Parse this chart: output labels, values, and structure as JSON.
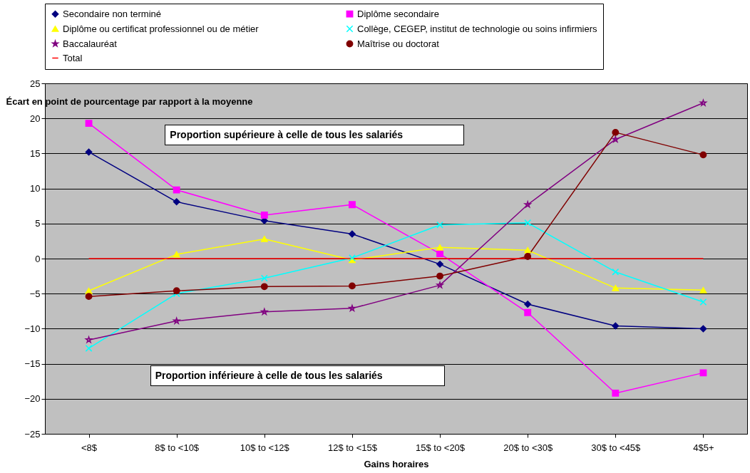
{
  "chart_data": {
    "type": "line",
    "ylabel": "Écart en point de pourcentage par rapport à la moyenne",
    "xlabel": "Gains horaires",
    "categories": [
      "<8$",
      "8$ to <10$",
      "10$ to <12$",
      "12$ to <15$",
      "15$ to <20$",
      "20$ to <30$",
      "30$ to <45$",
      "4$5+"
    ],
    "series": [
      {
        "name": "Secondaire non terminé",
        "color": "#000080",
        "marker": "diamond",
        "values": [
          15.2,
          8.1,
          5.4,
          3.5,
          -0.8,
          -6.5,
          -9.6,
          -10
        ]
      },
      {
        "name": "Diplôme secondaire",
        "color": "#ff00ff",
        "marker": "square",
        "values": [
          19.3,
          9.8,
          6.2,
          7.7,
          0.7,
          -7.7,
          -19.2,
          -16.3
        ]
      },
      {
        "name": "Diplôme ou certificat professionnel ou de métier",
        "color": "#ffff00",
        "marker": "triangle",
        "values": [
          -4.6,
          0.6,
          2.8,
          -0.2,
          1.6,
          1.2,
          -4.2,
          -4.5
        ]
      },
      {
        "name": "Collège, CEGEP, institut de technologie ou soins infirmiers",
        "color": "#00ffff",
        "marker": "cross",
        "values": [
          -12.8,
          -5,
          -2.8,
          0.1,
          4.8,
          5.1,
          -1.9,
          -6.2
        ]
      },
      {
        "name": "Baccalauréat",
        "color": "#800080",
        "marker": "star",
        "values": [
          -11.6,
          -8.9,
          -7.6,
          -7.1,
          -3.8,
          7.7,
          17,
          22.2
        ]
      },
      {
        "name": "Maîtrise ou doctorat",
        "color": "#800000",
        "marker": "circle",
        "values": [
          -5.4,
          -4.6,
          -4,
          -3.9,
          -2.5,
          0.3,
          18,
          14.8
        ]
      },
      {
        "name": "Total",
        "color": "#ff0000",
        "marker": "none",
        "values": [
          0,
          0,
          0,
          0,
          0,
          0,
          0,
          0
        ]
      }
    ],
    "ylim": [
      -25,
      25
    ],
    "yticks": [
      -25,
      -20,
      -15,
      -10,
      -5,
      0,
      5,
      10,
      15,
      20,
      25
    ],
    "grid": "y",
    "legend": "top",
    "annotations": [
      "Proportion supérieure à celle de tous les salariés",
      "Proportion inférieure à celle de tous les salariés"
    ]
  }
}
